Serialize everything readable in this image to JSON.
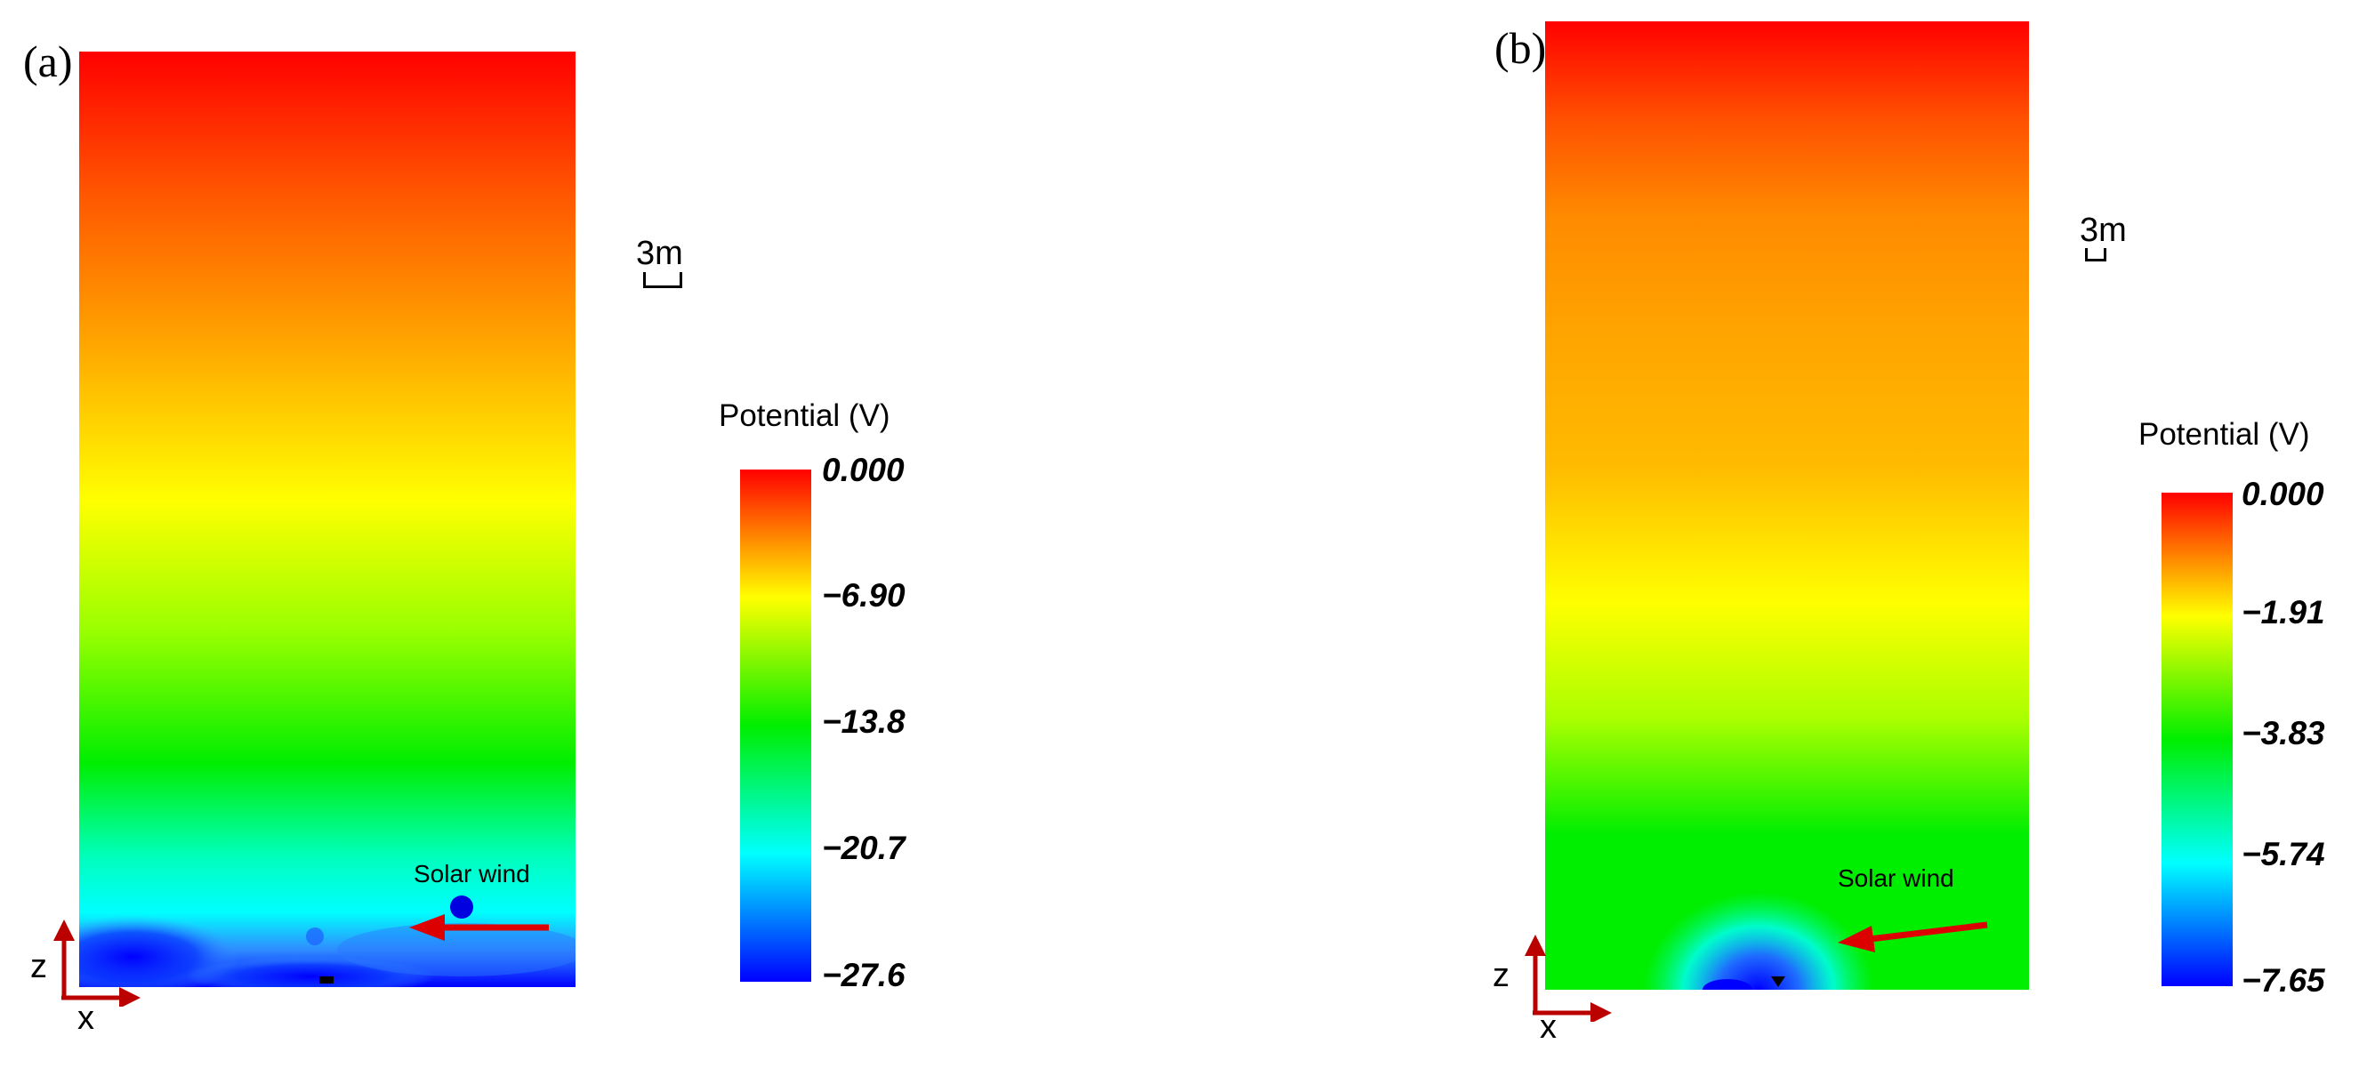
{
  "panels": [
    {
      "label": "(a)",
      "scale_label": "3m",
      "legend_title": "Potential (V)",
      "ticks": [
        "0.000",
        "−6.90",
        "−13.8",
        "−20.7",
        "−27.6"
      ],
      "annotation": "Solar wind",
      "axis_z": "z",
      "axis_x": "x"
    },
    {
      "label": "(b)",
      "scale_label": "3m",
      "legend_title": "Potential (V)",
      "ticks": [
        "0.000",
        "−1.91",
        "−3.83",
        "−5.74",
        "−7.65"
      ],
      "annotation": "Solar wind",
      "axis_z": "z",
      "axis_x": "x"
    }
  ],
  "colors": {
    "red": "#ff0000",
    "orange": "#ff8800",
    "yellow": "#ffff00",
    "green": "#00ee00",
    "cyan": "#00ffff",
    "blue": "#0000ff",
    "arrow": "#dd0000"
  }
}
